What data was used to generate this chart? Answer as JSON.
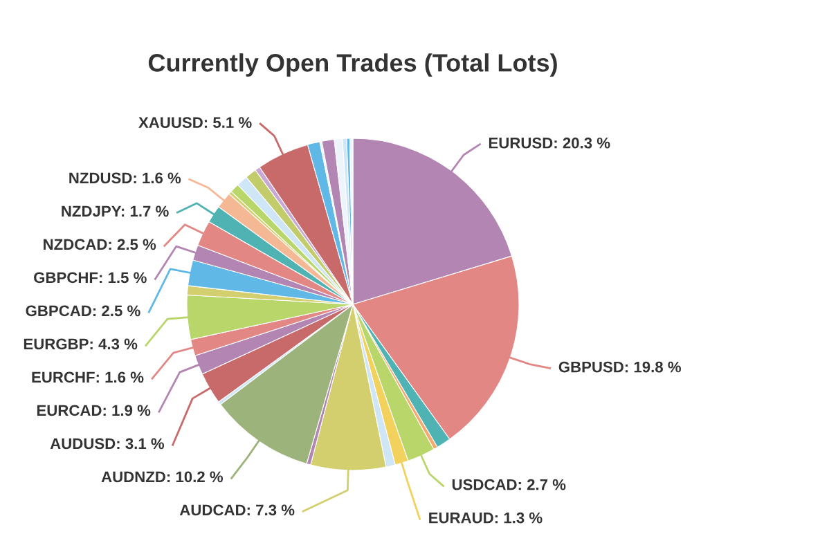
{
  "chart_data": {
    "type": "pie",
    "title": "Currently Open Trades (Total Lots)",
    "categories": [
      "EURUSD",
      "GBPUSD",
      null,
      null,
      "USDCAD",
      "EURAUD",
      null,
      "AUDCAD",
      null,
      "AUDNZD",
      null,
      "AUDUSD",
      "EURCAD",
      "EURCHF",
      "EURGBP",
      null,
      "GBPCAD",
      "GBPCHF",
      "NZDCAD",
      "NZDJPY",
      "NZDUSD",
      null,
      null,
      null,
      null,
      null,
      "XAUUSD",
      null,
      null,
      null,
      null,
      null,
      null,
      null
    ],
    "values": [
      20.3,
      19.8,
      1.4,
      0.4,
      2.7,
      1.3,
      0.9,
      7.3,
      0.4,
      10.2,
      0.3,
      3.1,
      1.9,
      1.6,
      4.3,
      0.9,
      2.5,
      1.5,
      2.5,
      1.7,
      1.6,
      0.3,
      0.9,
      1.1,
      1.1,
      0.5,
      5.1,
      1.2,
      0.2,
      1.2,
      0.8,
      0.4,
      0.3,
      0.3
    ],
    "value_labels": [
      "20.3 %",
      "19.8 %",
      null,
      null,
      "2.7 %",
      "1.3 %",
      null,
      "7.3 %",
      null,
      "10.2 %",
      null,
      "3.1 %",
      "1.9 %",
      "1.6 %",
      "4.3 %",
      null,
      "2.5 %",
      "1.5 %",
      "2.5 %",
      "1.7 %",
      "1.6 %",
      null,
      null,
      null,
      null,
      null,
      "5.1 %",
      null,
      null,
      null,
      null,
      null,
      null,
      null
    ],
    "colors": [
      "#b385b3",
      "#e38785",
      "#4fb3b3",
      "#f5a96e",
      "#b8d66a",
      "#f2d15c",
      "#cfe6f7",
      "#d4cf6e",
      "#b385b3",
      "#9db37c",
      "#cfe6f7",
      "#c96a6a",
      "#b385b3",
      "#e38785",
      "#b8d66a",
      "#d4cf6e",
      "#5fb8e6",
      "#b385b3",
      "#e38785",
      "#4fb3b3",
      "#f5b895",
      "#d4cf6e",
      "#b8d66a",
      "#cfe6f7",
      "#c2cc6a",
      "#c9a8d6",
      "#c96a6a",
      "#5fb8e6",
      "#eef4fb",
      "#b385b3",
      "#eef4fb",
      "#cfe6f7",
      "#5fb8e6",
      "#eef4fb"
    ],
    "legend": false
  }
}
